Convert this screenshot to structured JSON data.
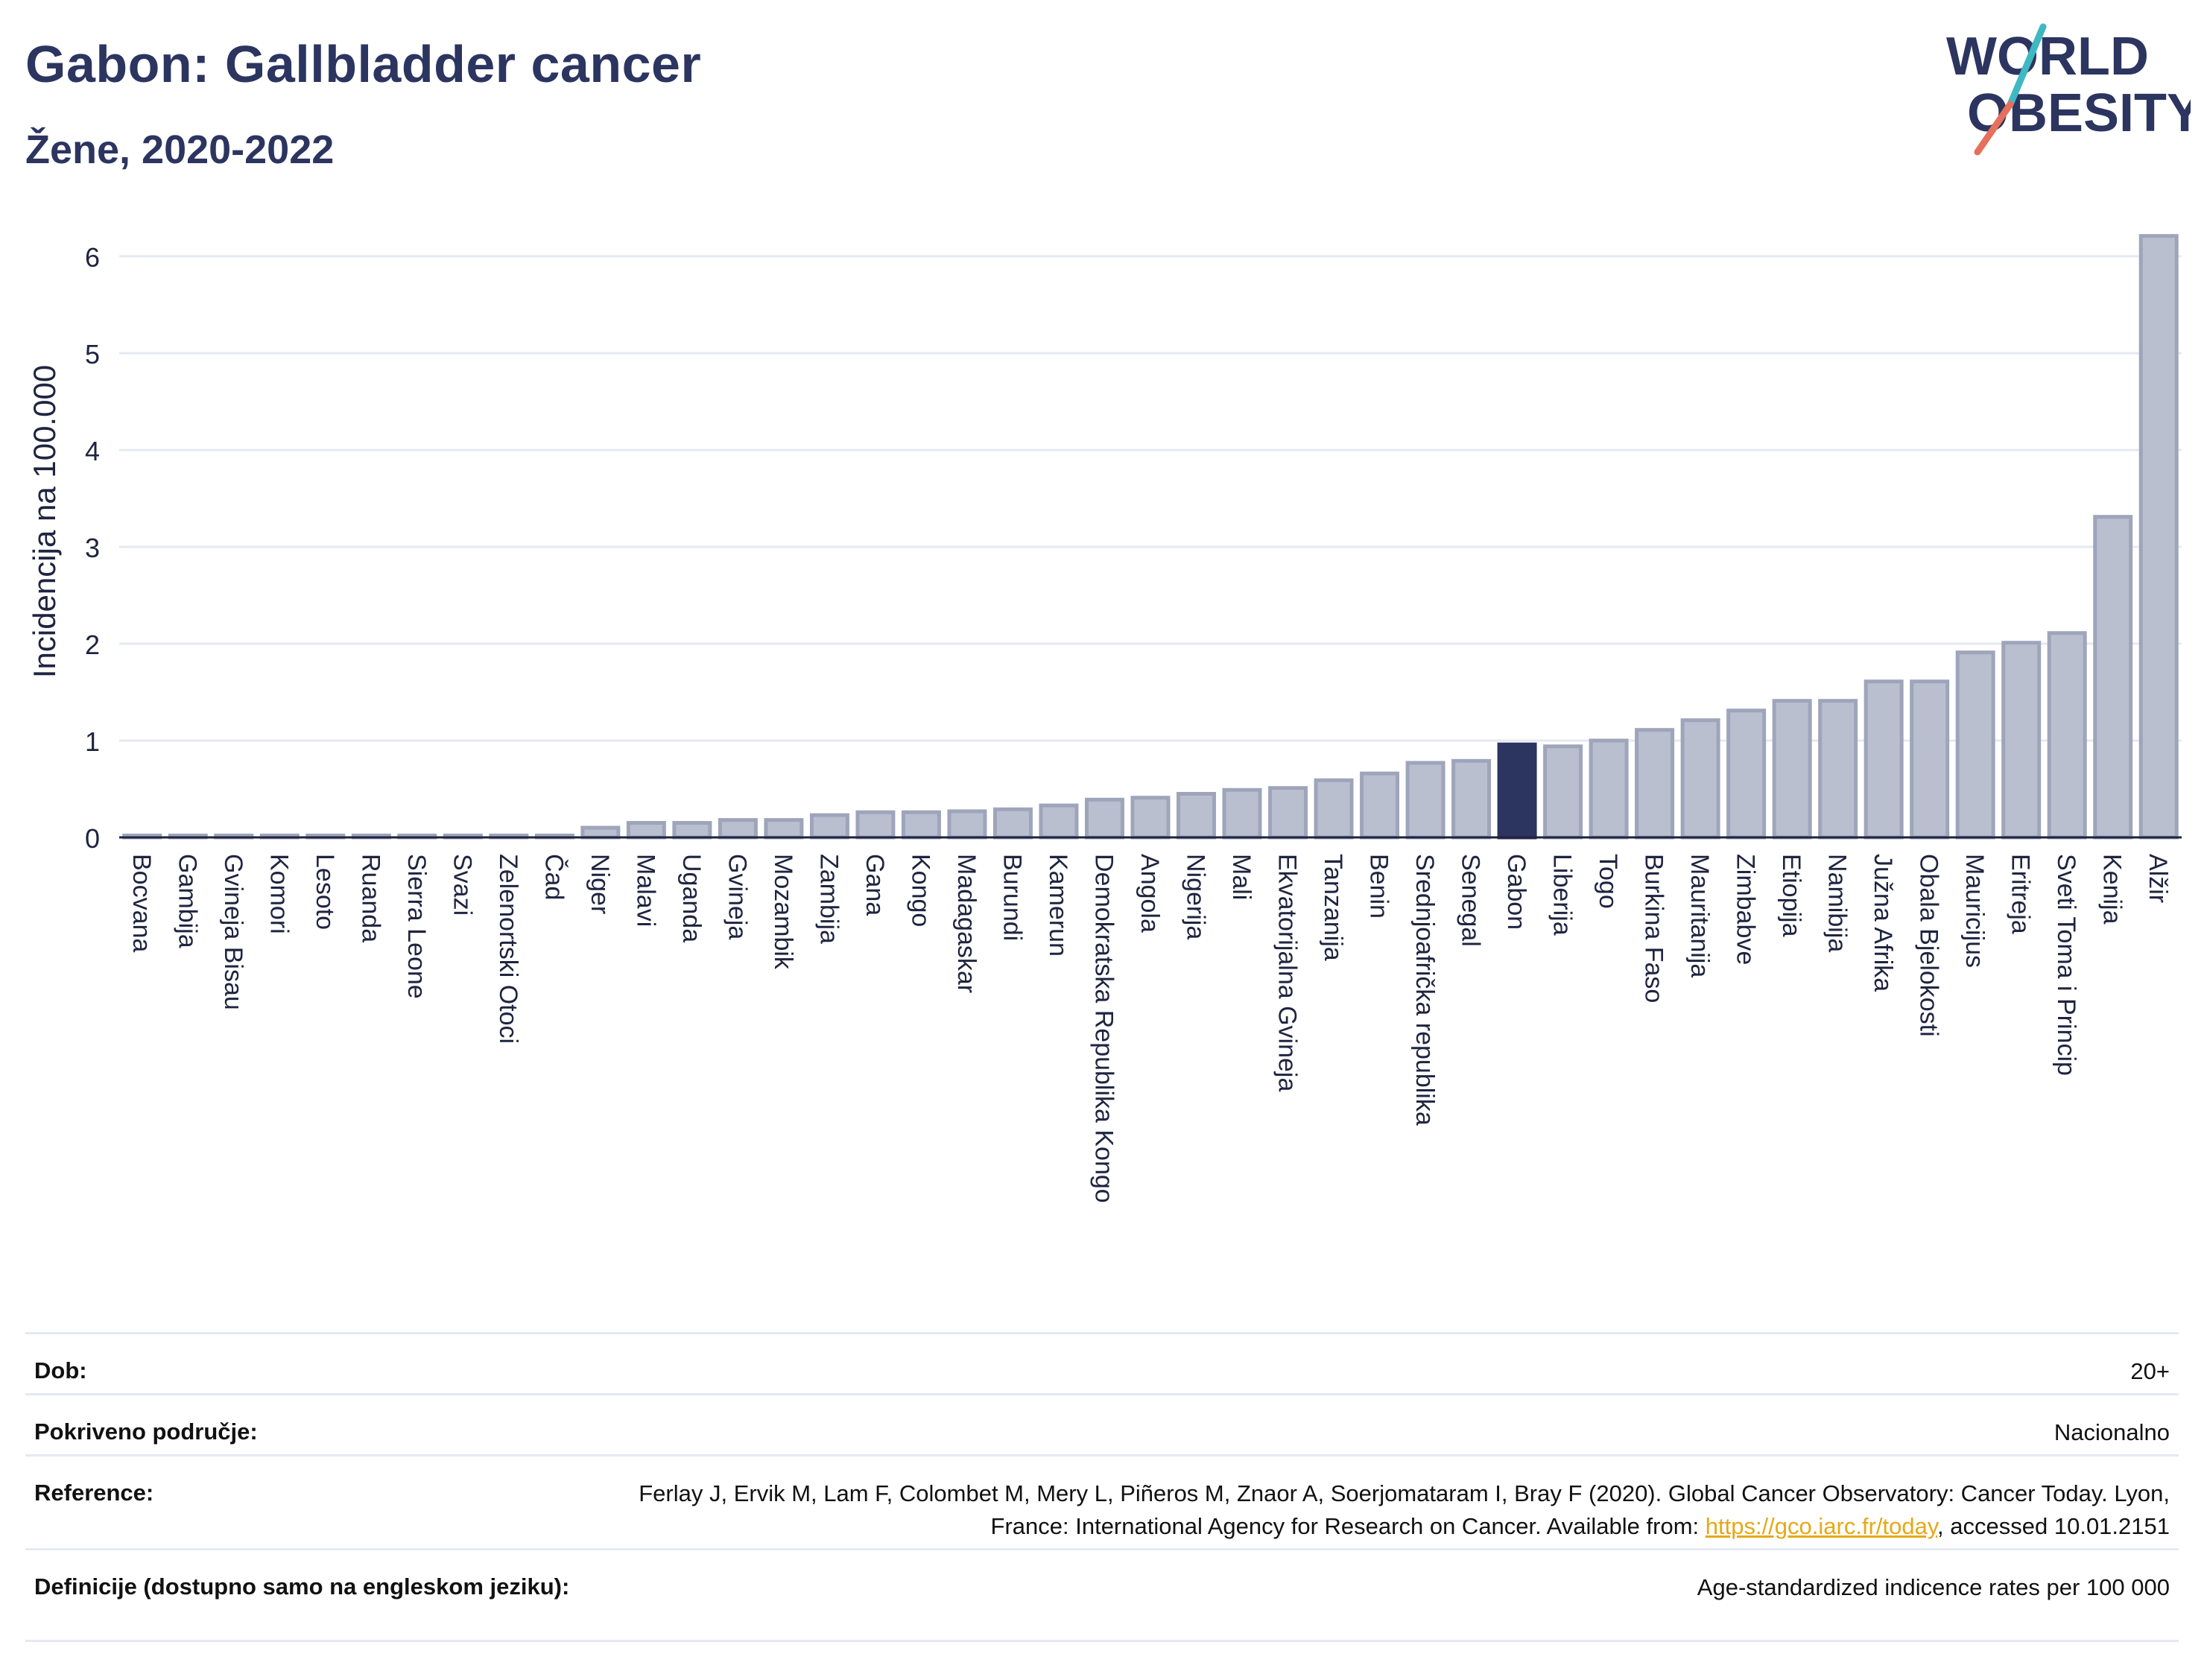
{
  "header": {
    "title": "Gabon: Gallbladder cancer",
    "subtitle": "Žene, 2020-2022"
  },
  "logo": {
    "line1": "WORLD",
    "line2": "OBESITY",
    "text_color": "#2c3560",
    "slash_color_top": "#3fb8c4",
    "slash_color_bottom": "#e5705c"
  },
  "colors": {
    "bar_fill": "#b9bfcf",
    "bar_stroke": "#9ea5bb",
    "highlight": "#2c3560",
    "grid": "#e4e9f2",
    "axis_text": "#1f2440"
  },
  "chart_data": {
    "type": "bar",
    "ylabel": "Incidencija na 100.000",
    "ylim": [
      0,
      6.5
    ],
    "yticks": [
      0,
      1,
      2,
      3,
      4,
      5,
      6
    ],
    "grid": true,
    "highlight": "Gabon",
    "categories": [
      "Bocvana",
      "Gambija",
      "Gvineja Bisau",
      "Komori",
      "Lesoto",
      "Ruanda",
      "Sierra Leone",
      "Svazi",
      "Zelenortski Otoci",
      "Čad",
      "Niger",
      "Malavi",
      "Uganda",
      "Gvineja",
      "Mozambik",
      "Zambija",
      "Gana",
      "Kongo",
      "Madagaskar",
      "Burundi",
      "Kamerun",
      "Demokratska Republika Kongo",
      "Angola",
      "Nigerija",
      "Mali",
      "Ekvatorijalna Gvineja",
      "Tanzanija",
      "Benin",
      "Srednjoafrička republika",
      "Senegal",
      "Gabon",
      "Liberija",
      "Togo",
      "Burkina Faso",
      "Mauritanija",
      "Zimbabve",
      "Etiopija",
      "Namibija",
      "Južna Afrika",
      "Obala Bjelokosti",
      "Mauricijus",
      "Eritreja",
      "Sveti Toma i Princip",
      "Kenija",
      "Alžir"
    ],
    "values": [
      0.02,
      0.02,
      0.02,
      0.02,
      0.02,
      0.02,
      0.02,
      0.02,
      0.02,
      0.02,
      0.1,
      0.15,
      0.15,
      0.18,
      0.18,
      0.23,
      0.26,
      0.26,
      0.27,
      0.29,
      0.33,
      0.39,
      0.41,
      0.45,
      0.49,
      0.51,
      0.59,
      0.66,
      0.77,
      0.79,
      0.96,
      0.94,
      1.0,
      1.11,
      1.21,
      1.31,
      1.41,
      1.41,
      1.61,
      1.61,
      1.91,
      2.01,
      2.11,
      3.31,
      6.21
    ]
  },
  "info": {
    "rows": [
      {
        "label": "Dob:",
        "value": "20+"
      },
      {
        "label": "Pokriveno područje:",
        "value": "Nacionalno"
      },
      {
        "label": "Reference:",
        "value_pre": "Ferlay J, Ervik M, Lam F, Colombet M, Mery L, Piñeros M, Znaor A, Soerjomataram I, Bray F (2020). Global Cancer Observatory: Cancer Today. Lyon, France: International Agency for Research on Cancer. Available from: ",
        "link": "https://gco.iarc.fr/today",
        "value_post": ", accessed 10.01.2151"
      },
      {
        "label": "Definicije (dostupno samo na engleskom jeziku):",
        "value": "Age-standardized indicence rates per 100 000"
      }
    ]
  }
}
